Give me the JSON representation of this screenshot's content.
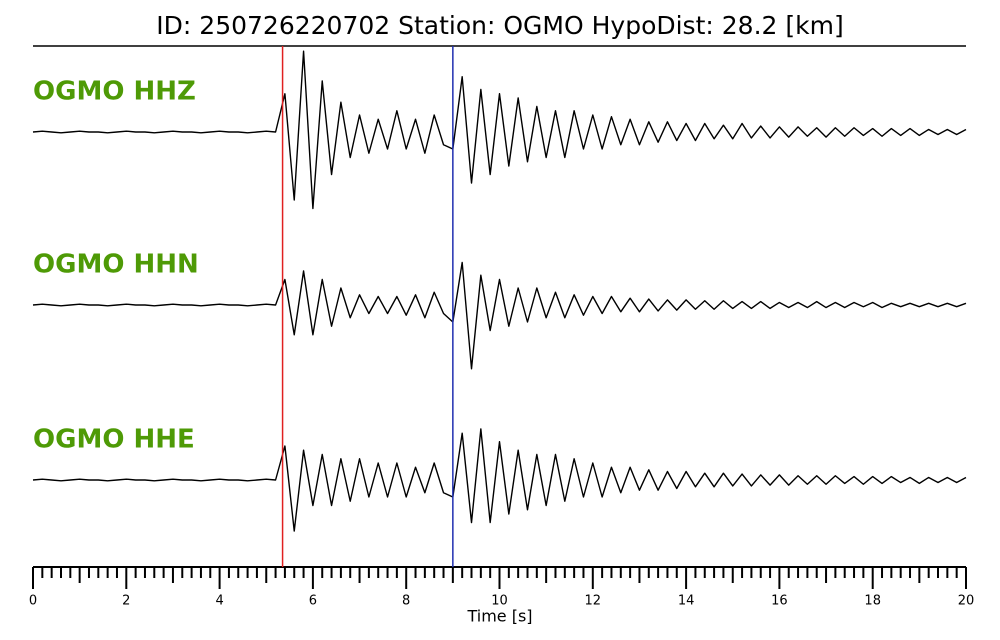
{
  "chart_data": {
    "type": "seismogram",
    "title": "ID: 250726220702   Station: OGMO   HypoDist:    28.2 [km]",
    "xlabel": "Time [s]",
    "xlim": [
      0,
      20
    ],
    "xticks": [
      0,
      2,
      4,
      6,
      8,
      10,
      12,
      14,
      16,
      18,
      20
    ],
    "minor_ticks_per_interval": 10,
    "ylim": [
      -1,
      1
    ],
    "label_color": "#4e9a06",
    "markers": [
      {
        "x": 5.35,
        "color": "#e02020"
      },
      {
        "x": 9.0,
        "color": "#2030b0"
      }
    ],
    "x": [
      0,
      0.2,
      0.4,
      0.6,
      0.8,
      1,
      1.2,
      1.4,
      1.6,
      1.8,
      2,
      2.2,
      2.4,
      2.6,
      2.8,
      3,
      3.2,
      3.4,
      3.6,
      3.8,
      4,
      4.2,
      4.4,
      4.6,
      4.8,
      5,
      5.2,
      5.4,
      5.6,
      5.8,
      6,
      6.2,
      6.4,
      6.6,
      6.8,
      7,
      7.2,
      7.4,
      7.6,
      7.8,
      8,
      8.2,
      8.4,
      8.6,
      8.8,
      9,
      9.2,
      9.4,
      9.6,
      9.8,
      10,
      10.2,
      10.4,
      10.6,
      10.8,
      11,
      11.2,
      11.4,
      11.6,
      11.8,
      12,
      12.2,
      12.4,
      12.6,
      12.8,
      13,
      13.2,
      13.4,
      13.6,
      13.8,
      14,
      14.2,
      14.4,
      14.6,
      14.8,
      15,
      15.2,
      15.4,
      15.6,
      15.8,
      16,
      16.2,
      16.4,
      16.6,
      16.8,
      17,
      17.2,
      17.4,
      17.6,
      17.8,
      18,
      18.2,
      18.4,
      18.6,
      18.8,
      19,
      19.2,
      19.4,
      19.6,
      19.8,
      20
    ],
    "series": [
      {
        "name": "OGMO HHZ",
        "color": "#000000",
        "values": [
          0,
          0.01,
          0,
          -0.01,
          0,
          0.01,
          0,
          0,
          -0.01,
          0,
          0.01,
          0,
          0,
          -0.01,
          0,
          0.01,
          0,
          0,
          -0.01,
          0,
          0.01,
          0,
          0,
          -0.01,
          0,
          0.01,
          0,
          0.45,
          -0.8,
          0.95,
          -0.9,
          0.6,
          -0.5,
          0.35,
          -0.3,
          0.2,
          -0.25,
          0.15,
          -0.2,
          0.25,
          -0.2,
          0.15,
          -0.25,
          0.2,
          -0.15,
          -0.2,
          0.65,
          -0.6,
          0.5,
          -0.5,
          0.45,
          -0.4,
          0.4,
          -0.35,
          0.3,
          -0.3,
          0.25,
          -0.3,
          0.25,
          -0.2,
          0.2,
          -0.2,
          0.18,
          -0.15,
          0.15,
          -0.15,
          0.12,
          -0.12,
          0.12,
          -0.1,
          0.1,
          -0.1,
          0.1,
          -0.08,
          0.08,
          -0.08,
          0.1,
          -0.07,
          0.07,
          -0.07,
          0.06,
          -0.06,
          0.06,
          -0.05,
          0.05,
          -0.06,
          0.05,
          -0.05,
          0.05,
          -0.04,
          0.04,
          -0.05,
          0.04,
          -0.04,
          0.04,
          -0.04,
          0.03,
          -0.03,
          0.03,
          -0.03,
          0.03
        ]
      },
      {
        "name": "OGMO HHN",
        "color": "#000000",
        "values": [
          0,
          0.01,
          0,
          -0.01,
          0,
          0.01,
          0,
          0,
          -0.01,
          0,
          0.01,
          0,
          0,
          -0.01,
          0,
          0.01,
          0,
          0,
          -0.01,
          0,
          0.01,
          0,
          0,
          -0.01,
          0,
          0.01,
          0,
          0.3,
          -0.35,
          0.4,
          -0.35,
          0.3,
          -0.25,
          0.2,
          -0.15,
          0.12,
          -0.1,
          0.1,
          -0.1,
          0.1,
          -0.12,
          0.12,
          -0.15,
          0.15,
          -0.1,
          -0.2,
          0.5,
          -0.75,
          0.35,
          -0.3,
          0.3,
          -0.25,
          0.2,
          -0.2,
          0.2,
          -0.15,
          0.15,
          -0.15,
          0.12,
          -0.12,
          0.1,
          -0.1,
          0.1,
          -0.08,
          0.08,
          -0.08,
          0.07,
          -0.07,
          0.06,
          -0.06,
          0.06,
          -0.05,
          0.05,
          -0.05,
          0.05,
          -0.04,
          0.04,
          -0.04,
          0.04,
          -0.04,
          0.03,
          -0.03,
          0.03,
          -0.03,
          0.04,
          -0.03,
          0.03,
          -0.03,
          0.03,
          -0.02,
          0.03,
          -0.03,
          0.02,
          -0.02,
          0.02,
          -0.02,
          0.02,
          -0.02,
          0.02,
          -0.02,
          0.02
        ]
      },
      {
        "name": "OGMO HHE",
        "color": "#000000",
        "values": [
          0,
          0.01,
          0,
          -0.01,
          0,
          0.01,
          0,
          0,
          -0.01,
          0,
          0.01,
          0,
          0,
          -0.01,
          0,
          0.01,
          0,
          0,
          -0.01,
          0,
          0.01,
          0,
          0,
          -0.01,
          0,
          0.01,
          0,
          0.4,
          -0.6,
          0.35,
          -0.3,
          0.3,
          -0.3,
          0.25,
          -0.25,
          0.25,
          -0.2,
          0.2,
          -0.2,
          0.2,
          -0.2,
          0.15,
          -0.15,
          0.2,
          -0.15,
          -0.2,
          0.55,
          -0.5,
          0.6,
          -0.5,
          0.45,
          -0.4,
          0.35,
          -0.35,
          0.3,
          -0.3,
          0.3,
          -0.25,
          0.25,
          -0.2,
          0.2,
          -0.2,
          0.15,
          -0.15,
          0.15,
          -0.12,
          0.12,
          -0.12,
          0.1,
          -0.1,
          0.1,
          -0.08,
          0.08,
          -0.08,
          0.08,
          -0.07,
          0.07,
          -0.07,
          0.06,
          -0.06,
          0.06,
          -0.06,
          0.05,
          -0.05,
          0.05,
          -0.05,
          0.05,
          -0.04,
          0.04,
          -0.05,
          0.04,
          -0.04,
          0.04,
          -0.03,
          0.03,
          -0.04,
          0.03,
          -0.03,
          0.03,
          -0.03,
          0.03
        ]
      }
    ]
  }
}
